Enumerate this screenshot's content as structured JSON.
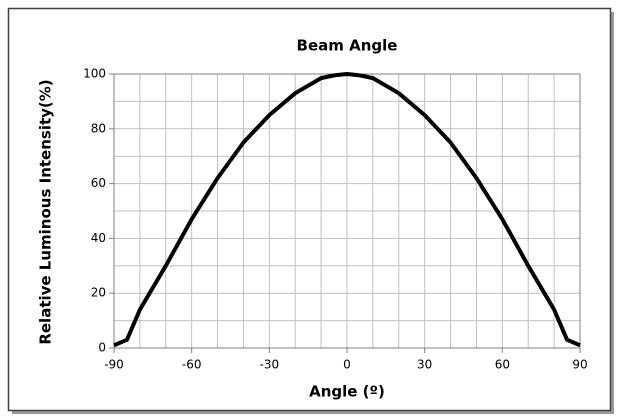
{
  "chart_data": {
    "type": "line",
    "title": "Beam Angle",
    "xlabel": "Angle (º)",
    "ylabel": "Relative Luminous Intensity(%)",
    "x": [
      -90,
      -85,
      -80,
      -70,
      -60,
      -50,
      -40,
      -30,
      -20,
      -10,
      -5,
      0,
      5,
      10,
      20,
      30,
      40,
      50,
      60,
      70,
      80,
      85,
      90
    ],
    "series": [
      {
        "color": "#000000",
        "values": [
          1,
          3,
          14,
          30,
          47,
          62,
          75,
          85,
          93,
          98.5,
          99.5,
          100,
          99.5,
          98.5,
          93,
          85,
          75,
          62,
          47,
          30,
          14,
          3,
          1
        ]
      }
    ],
    "xlim": [
      -90,
      90
    ],
    "xticks": [
      -90,
      -60,
      -30,
      0,
      30,
      60,
      90
    ],
    "ylim": [
      0,
      100
    ],
    "yticks": [
      0,
      20,
      40,
      60,
      80,
      100
    ],
    "xgridticks": [
      -90,
      -80,
      -70,
      -60,
      -50,
      -40,
      -30,
      -20,
      -10,
      0,
      10,
      20,
      30,
      40,
      50,
      60,
      70,
      80,
      90
    ],
    "ygridticks": [
      0,
      10,
      20,
      30,
      40,
      50,
      60,
      70,
      80,
      90,
      100
    ],
    "grid": true
  }
}
